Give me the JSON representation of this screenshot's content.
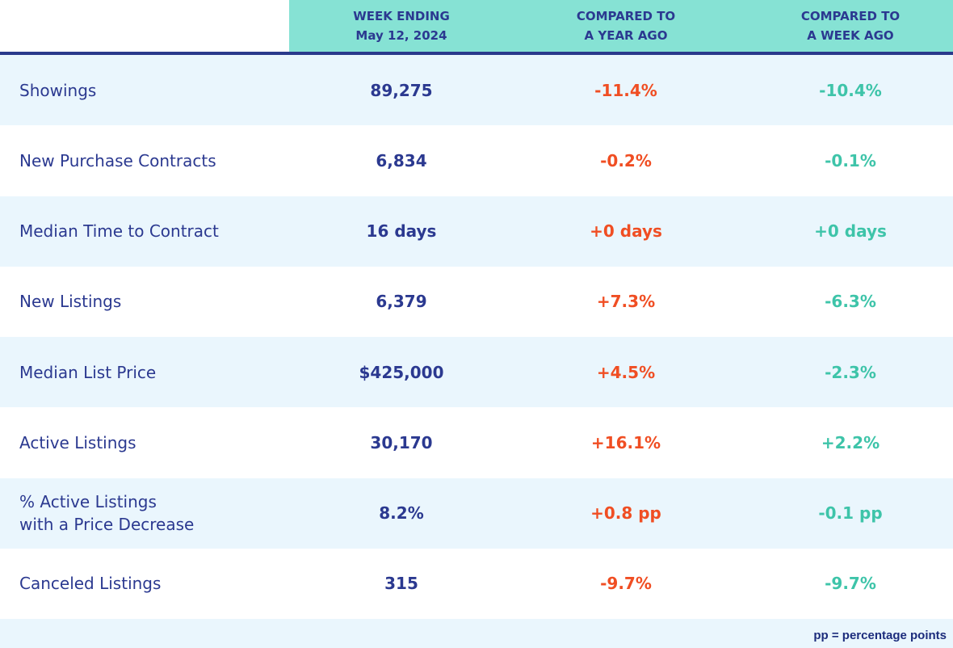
{
  "header": {
    "columns": [
      [
        "WEEK ENDING",
        "May 12, 2024"
      ],
      [
        "COMPARED TO",
        "A YEAR AGO"
      ],
      [
        "COMPARED TO",
        "A WEEK AGO"
      ]
    ]
  },
  "table": {
    "rows": [
      [
        [
          "Showings"
        ],
        "89,275",
        "-11.4%",
        "-10.4%"
      ],
      [
        [
          "New Purchase Contracts"
        ],
        "6,834",
        "-0.2%",
        "-0.1%"
      ],
      [
        [
          "Median Time to Contract"
        ],
        "16 days",
        "+0 days",
        "+0 days"
      ],
      [
        [
          "New Listings"
        ],
        "6,379",
        "+7.3%",
        "-6.3%"
      ],
      [
        [
          "Median List Price"
        ],
        "$425,000",
        "+4.5%",
        "-2.3%"
      ],
      [
        [
          "Active Listings"
        ],
        "30,170",
        "+16.1%",
        "+2.2%"
      ],
      [
        [
          "% Active Listings",
          "with a Price Decrease"
        ],
        "8.2%",
        "+0.8 pp",
        "-0.1 pp"
      ],
      [
        [
          "Canceled Listings"
        ],
        "315",
        "-9.7%",
        "-9.7%"
      ]
    ]
  },
  "footnote": "pp = percentage points"
}
